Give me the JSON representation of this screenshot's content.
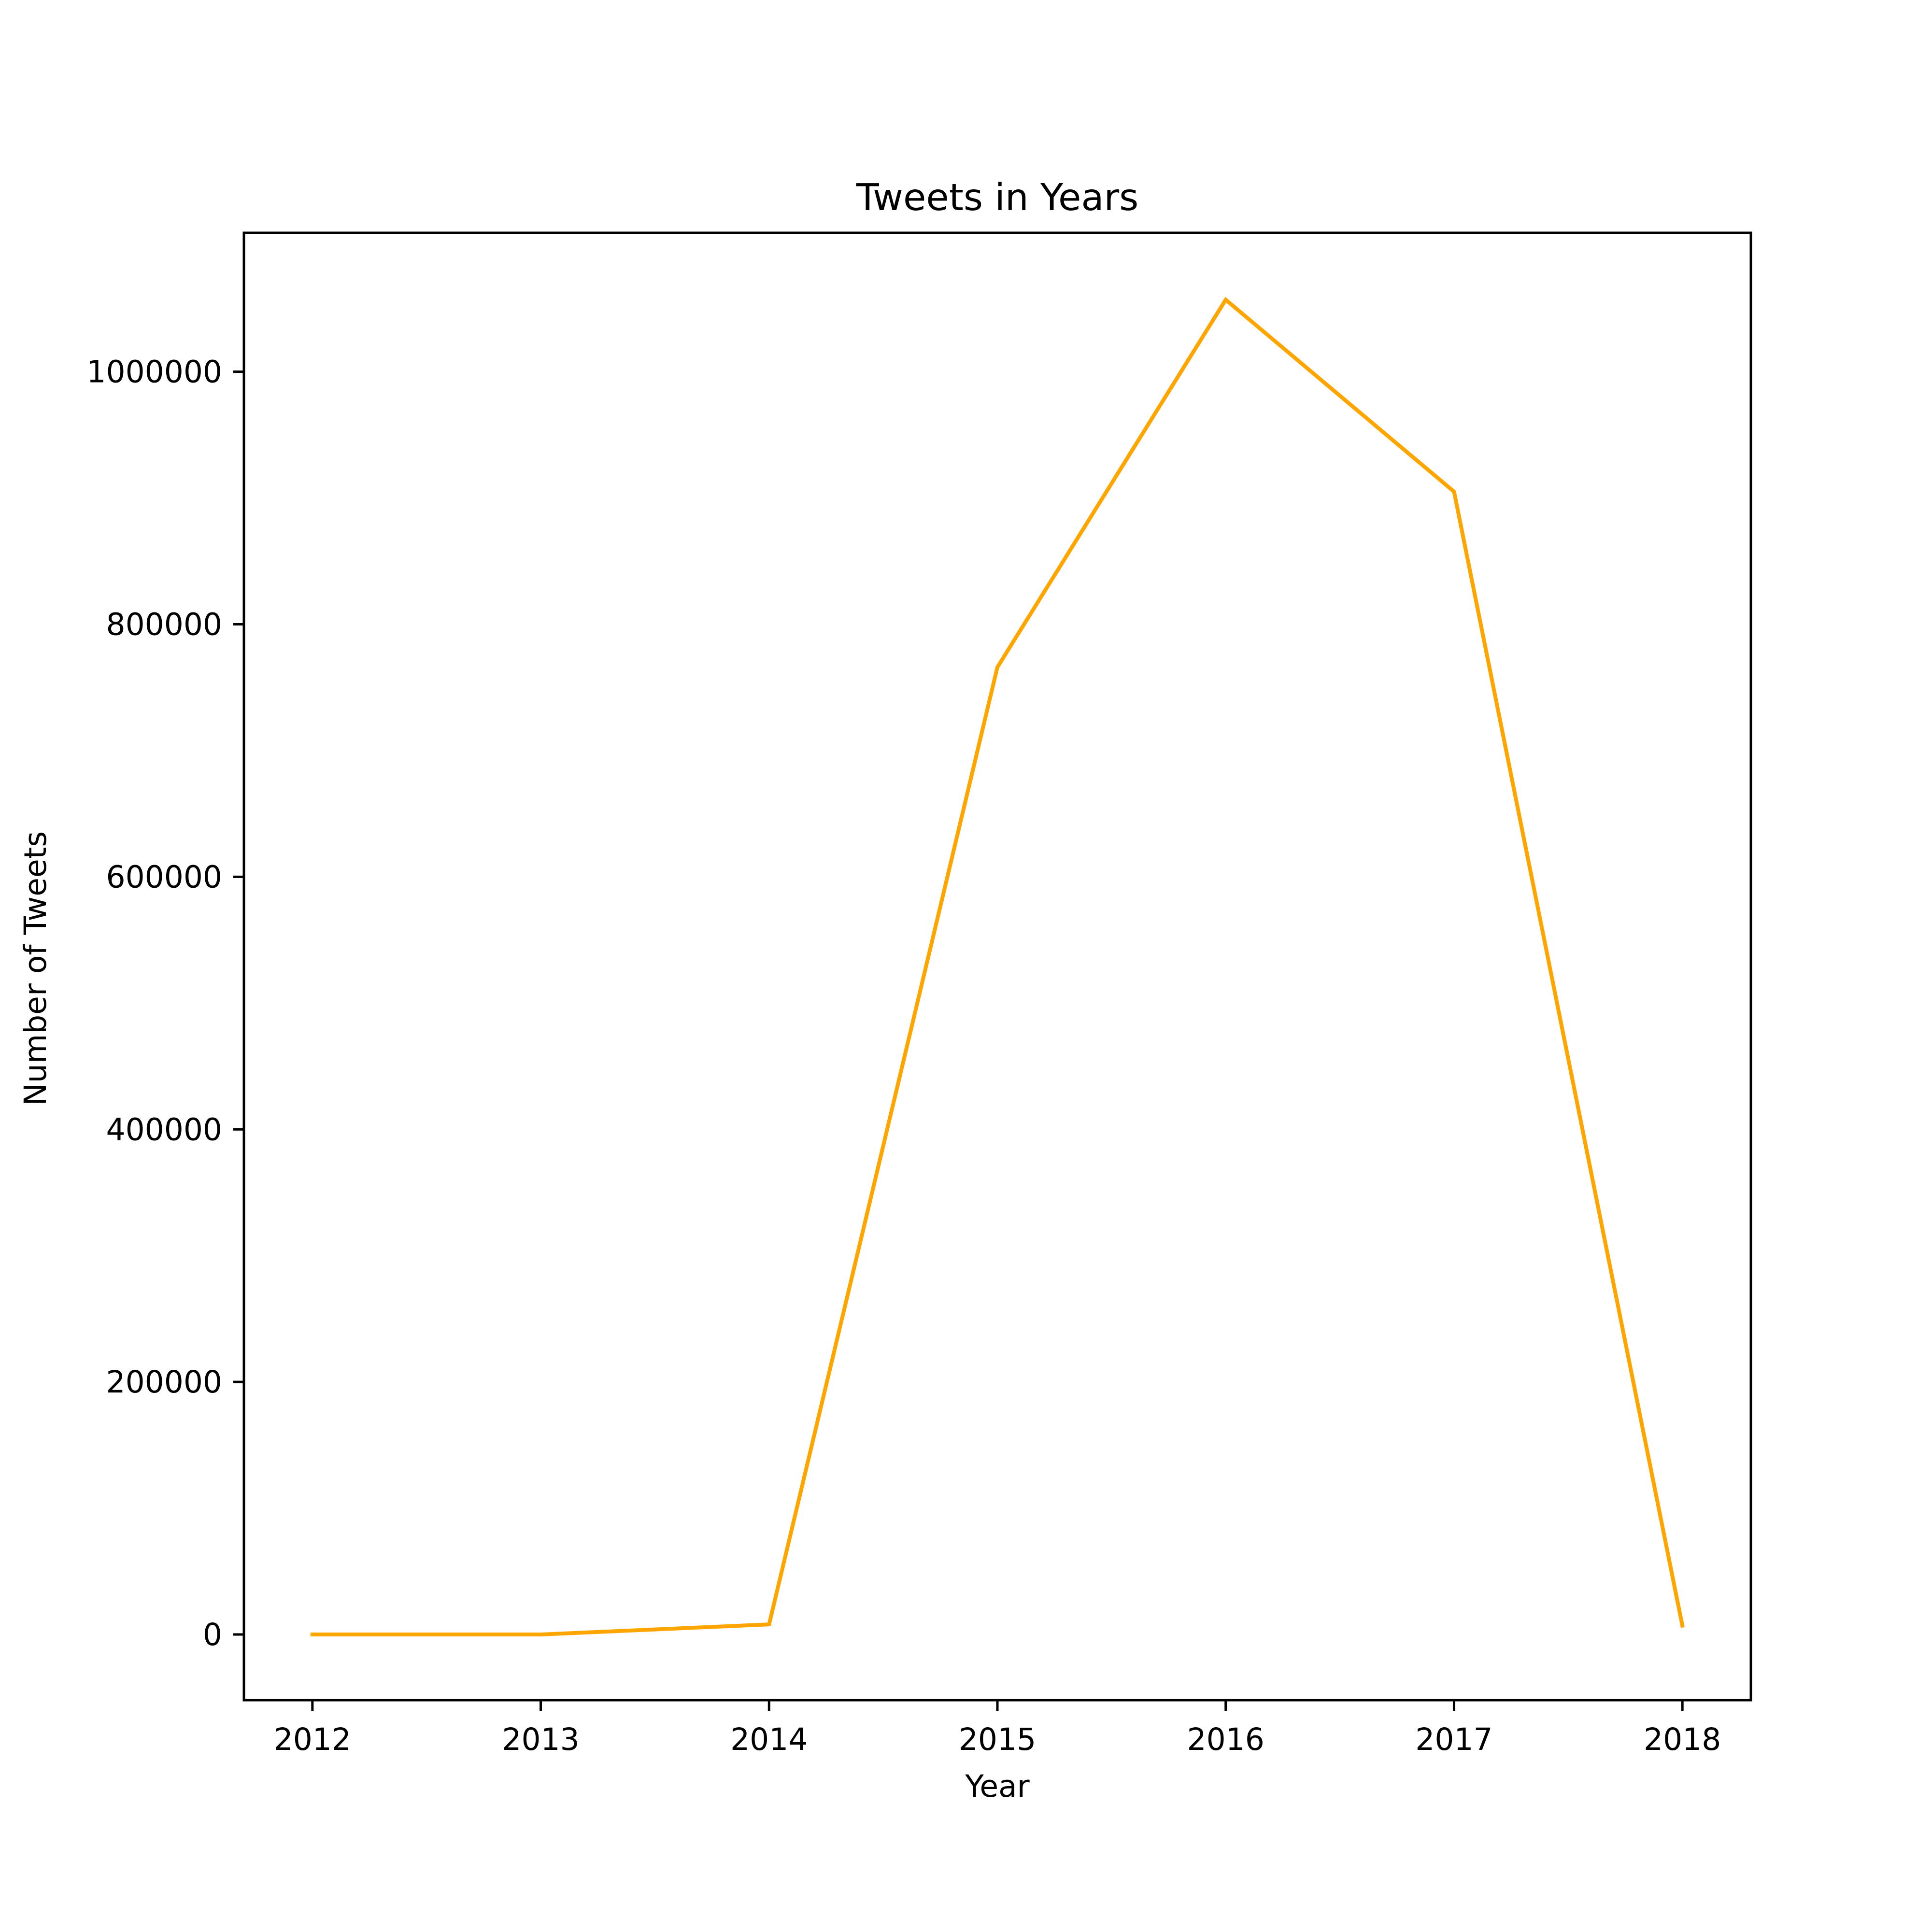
{
  "chart_data": {
    "type": "line",
    "title": "Tweets in Years",
    "xlabel": "Year",
    "ylabel": "Number of Tweets",
    "x": [
      2012,
      2013,
      2014,
      2015,
      2016,
      2017,
      2018
    ],
    "x_tick_labels": [
      "2012",
      "2013",
      "2014",
      "2015",
      "2016",
      "2017",
      "2018"
    ],
    "y_ticks": [
      0,
      200000,
      400000,
      600000,
      800000,
      1000000
    ],
    "y_tick_labels": [
      "0",
      "200000",
      "400000",
      "600000",
      "800000",
      "1000000"
    ],
    "series": [
      {
        "values": [
          0,
          0,
          8000,
          766000,
          1057000,
          905000,
          7000
        ],
        "color": "#ffa500"
      }
    ],
    "xlim": [
      2011.7,
      2018.3
    ],
    "ylim": [
      -52000,
      1110000
    ],
    "grid": false,
    "legend": false
  }
}
